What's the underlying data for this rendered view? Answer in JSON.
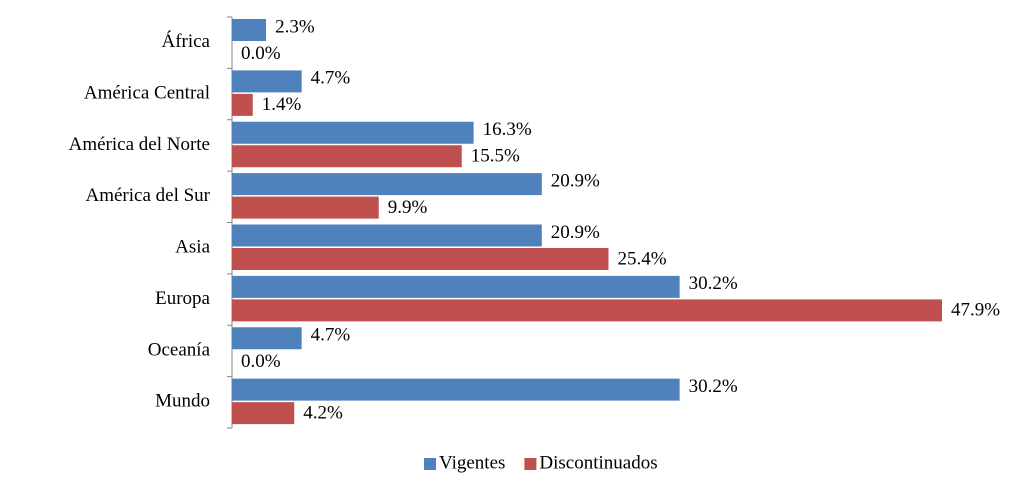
{
  "chart_data": {
    "type": "barh",
    "categories": [
      "África",
      "América Central",
      "América del Norte",
      "América del Sur",
      "Asia",
      "Europa",
      "Oceanía",
      "Mundo"
    ],
    "series": [
      {
        "name": "Vigentes",
        "color": "#4f81bd",
        "values": [
          2.3,
          4.7,
          16.3,
          20.9,
          20.9,
          30.2,
          4.7,
          30.2
        ],
        "value_labels": [
          "2.3%",
          "4.7%",
          "16.3%",
          "20.9%",
          "20.9%",
          "30.2%",
          "4.7%",
          "30.2%"
        ]
      },
      {
        "name": "Discontinuados",
        "color": "#c0504d",
        "values": [
          0.0,
          1.4,
          15.5,
          9.9,
          25.4,
          47.9,
          0.0,
          4.2
        ],
        "value_labels": [
          "0.0%",
          "1.4%",
          "15.5%",
          "9.9%",
          "25.4%",
          "47.9%",
          "0.0%",
          "4.2%"
        ]
      }
    ],
    "legend": "bottom"
  }
}
